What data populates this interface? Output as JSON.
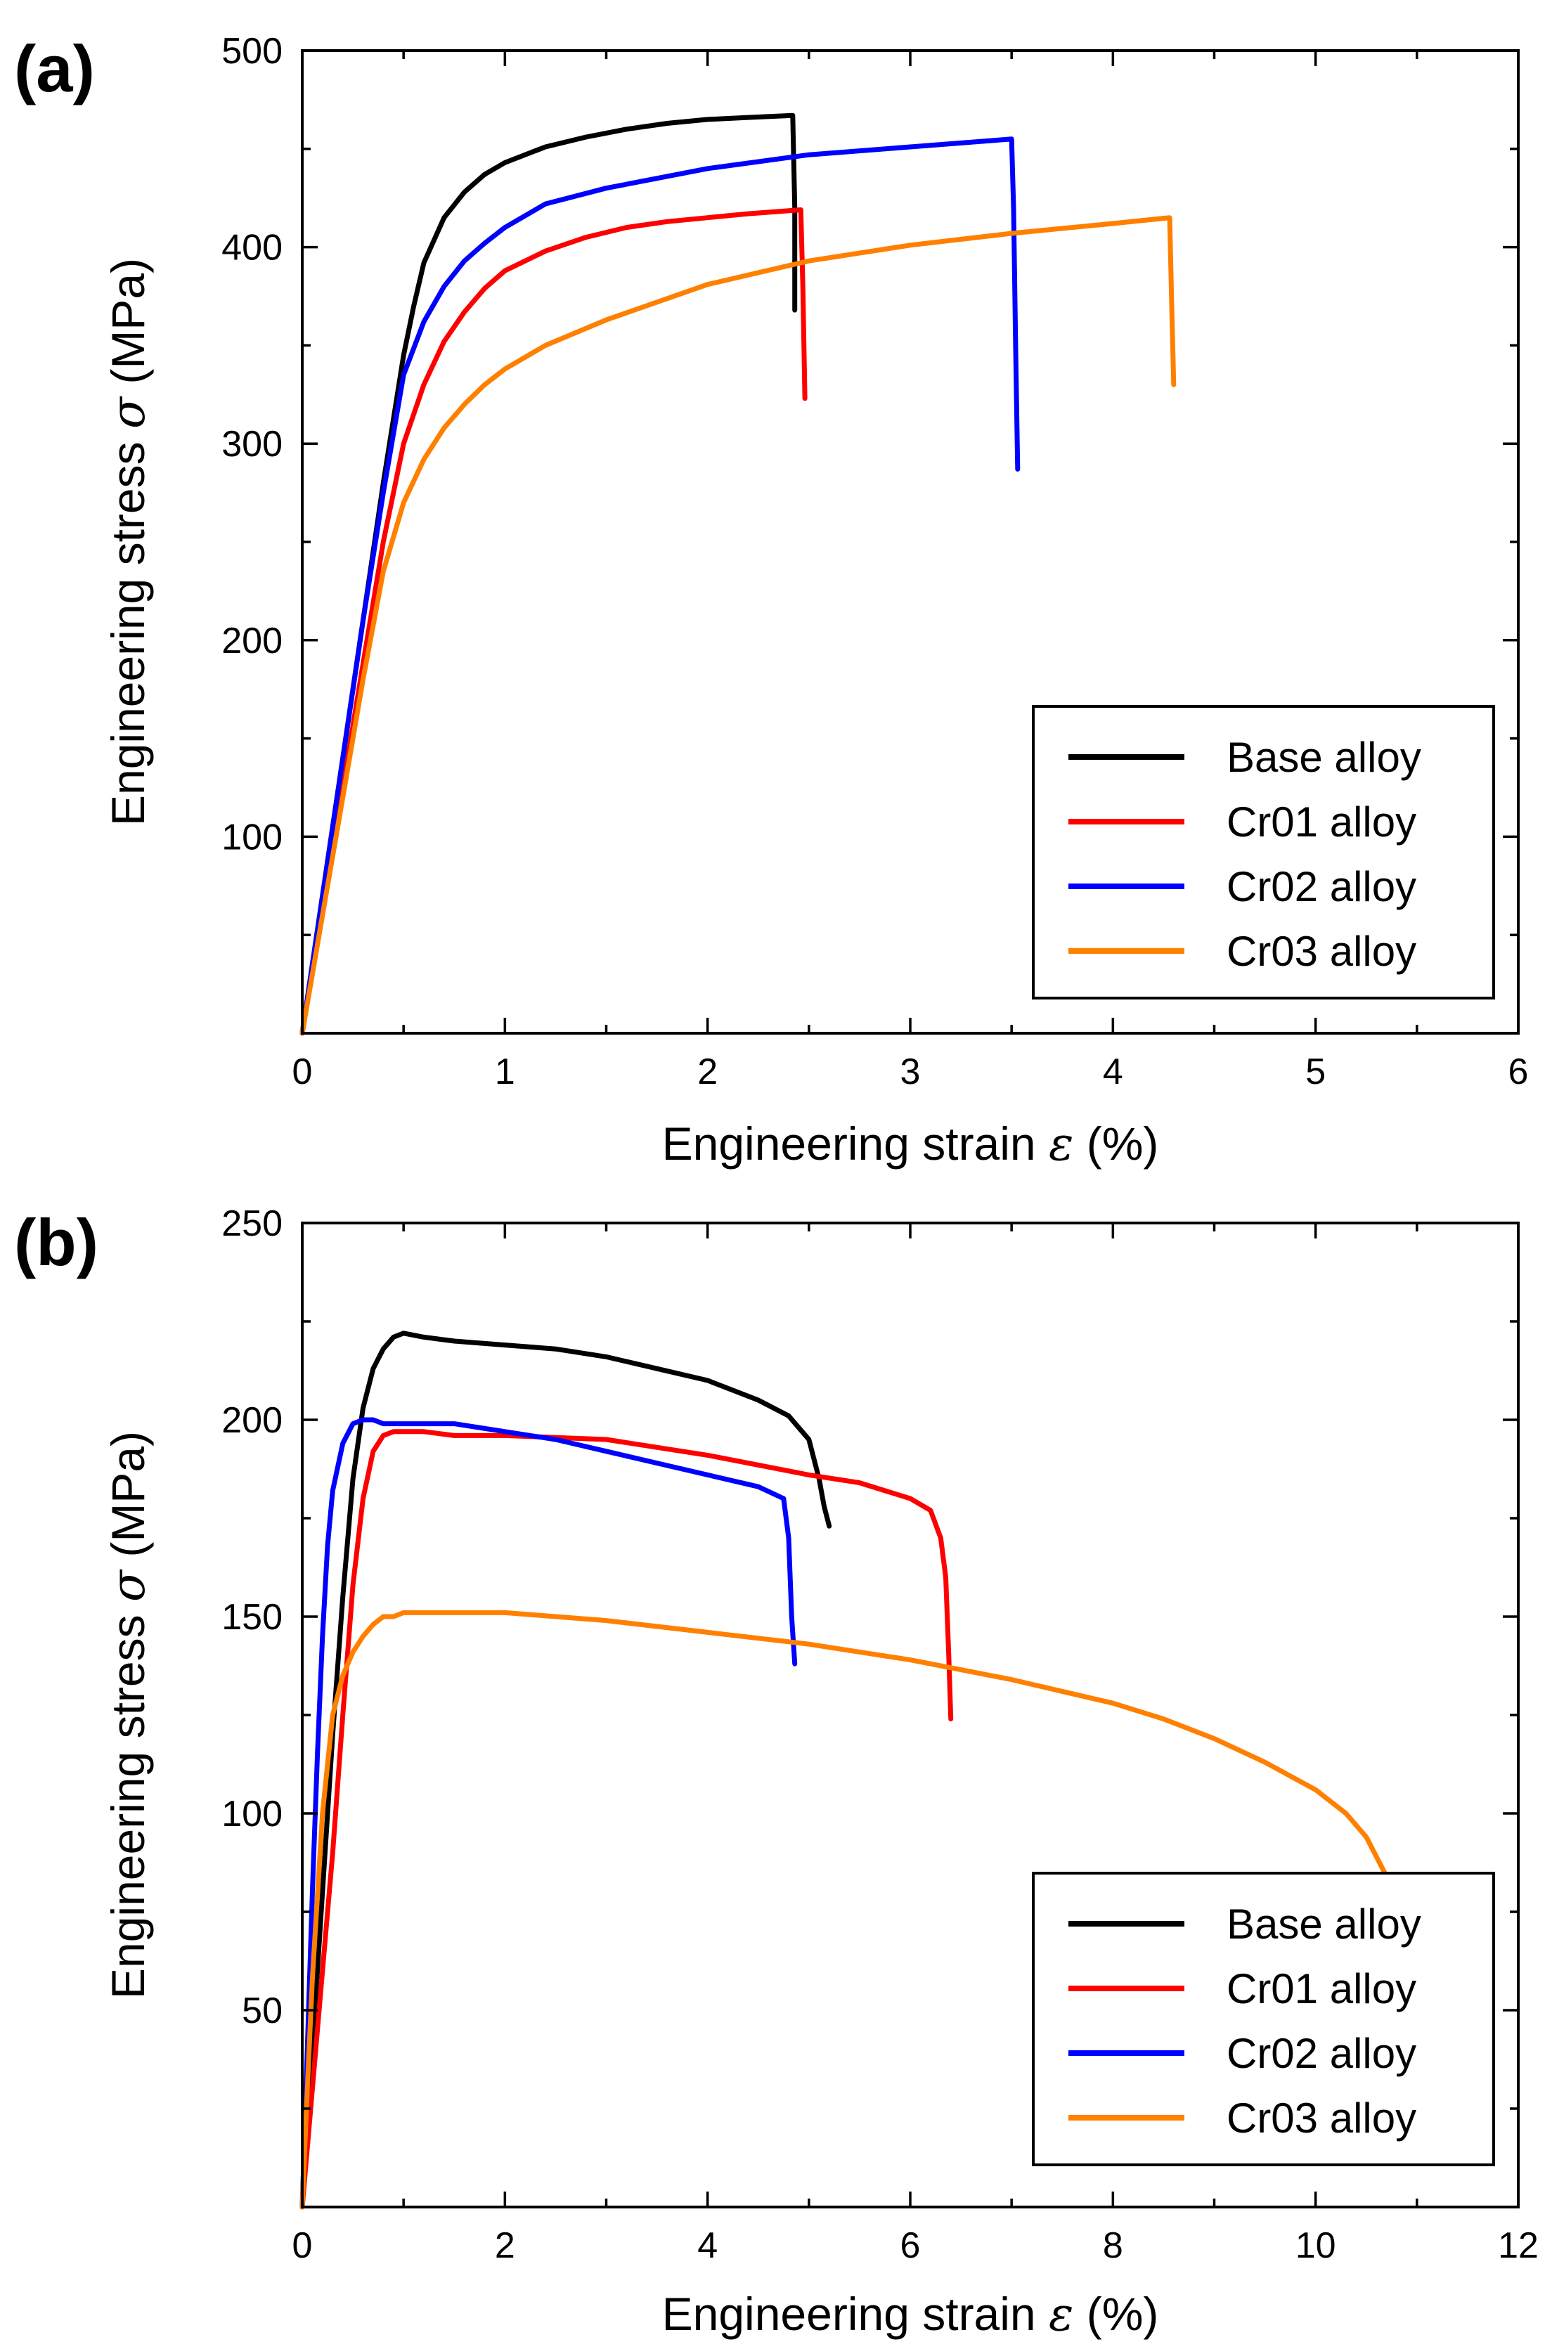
{
  "chart_data": [
    {
      "id": "a",
      "type": "line",
      "panel_label": "(a)",
      "title": "",
      "xlabel": "Engineering strain",
      "xlabel_symbol": "ε",
      "xlabel_unit": "(%)",
      "ylabel": "Engineering stress",
      "ylabel_symbol": "σ",
      "ylabel_unit": "(MPa)",
      "xlim": [
        0,
        6
      ],
      "ylim": [
        0,
        500
      ],
      "xticks": [
        0,
        1,
        2,
        3,
        4,
        5,
        6
      ],
      "yticks": [
        100,
        200,
        300,
        400,
        500
      ],
      "grid": false,
      "legend_position": "bottom-right",
      "series": [
        {
          "name": "Base alloy",
          "color": "#000000",
          "x": [
            0,
            0.1,
            0.2,
            0.3,
            0.4,
            0.5,
            0.55,
            0.6,
            0.7,
            0.8,
            0.9,
            1.0,
            1.2,
            1.4,
            1.6,
            1.8,
            2.0,
            2.2,
            2.42,
            2.43,
            2.43
          ],
          "y": [
            0,
            70,
            140,
            210,
            280,
            345,
            370,
            392,
            415,
            428,
            437,
            443,
            451,
            456,
            460,
            463,
            465,
            466,
            467,
            420,
            368
          ]
        },
        {
          "name": "Cr01 alloy",
          "color": "#ff0000",
          "x": [
            0,
            0.1,
            0.2,
            0.3,
            0.4,
            0.5,
            0.6,
            0.7,
            0.8,
            0.9,
            1.0,
            1.2,
            1.4,
            1.6,
            1.8,
            2.0,
            2.2,
            2.46,
            2.47,
            2.48
          ],
          "y": [
            0,
            62,
            125,
            188,
            250,
            300,
            330,
            352,
            367,
            379,
            388,
            398,
            405,
            410,
            413,
            415,
            417,
            419,
            380,
            323
          ]
        },
        {
          "name": "Cr02 alloy",
          "color": "#0000ff",
          "x": [
            0,
            0.1,
            0.2,
            0.3,
            0.4,
            0.5,
            0.6,
            0.7,
            0.8,
            0.9,
            1.0,
            1.2,
            1.5,
            2.0,
            2.5,
            3.0,
            3.5,
            3.51,
            3.52,
            3.53
          ],
          "y": [
            0,
            70,
            140,
            210,
            275,
            335,
            362,
            380,
            393,
            402,
            410,
            422,
            430,
            440,
            447,
            451,
            455,
            420,
            350,
            287
          ]
        },
        {
          "name": "Cr03 alloy",
          "color": "#ff8000",
          "x": [
            0,
            0.1,
            0.2,
            0.3,
            0.4,
            0.5,
            0.6,
            0.7,
            0.8,
            0.9,
            1.0,
            1.2,
            1.5,
            2.0,
            2.5,
            3.0,
            3.5,
            4.0,
            4.28,
            4.29,
            4.3
          ],
          "y": [
            0,
            60,
            120,
            180,
            235,
            270,
            292,
            308,
            320,
            330,
            338,
            350,
            363,
            381,
            393,
            401,
            407,
            412,
            415,
            370,
            330
          ]
        }
      ]
    },
    {
      "id": "b",
      "type": "line",
      "panel_label": "(b)",
      "title": "",
      "xlabel": "Engineering strain",
      "xlabel_symbol": "ε",
      "xlabel_unit": "(%)",
      "ylabel": "Engineering stress",
      "ylabel_symbol": "σ",
      "ylabel_unit": "(MPa)",
      "xlim": [
        0,
        12
      ],
      "ylim": [
        0,
        250
      ],
      "xticks": [
        0,
        2,
        4,
        6,
        8,
        10,
        12
      ],
      "yticks": [
        50,
        100,
        150,
        200,
        250
      ],
      "grid": false,
      "legend_position": "bottom-right",
      "series": [
        {
          "name": "Base alloy",
          "color": "#000000",
          "x": [
            0,
            0.1,
            0.2,
            0.3,
            0.4,
            0.5,
            0.6,
            0.7,
            0.8,
            0.9,
            1.0,
            1.2,
            1.5,
            2.0,
            2.5,
            3.0,
            3.5,
            4.0,
            4.5,
            4.8,
            5.0,
            5.1,
            5.15,
            5.2
          ],
          "y": [
            0,
            40,
            80,
            120,
            155,
            185,
            203,
            213,
            218,
            221,
            222,
            221,
            220,
            219,
            218,
            216,
            213,
            210,
            205,
            201,
            195,
            185,
            178,
            173
          ]
        },
        {
          "name": "Cr01 alloy",
          "color": "#ff0000",
          "x": [
            0,
            0.1,
            0.2,
            0.3,
            0.4,
            0.5,
            0.6,
            0.7,
            0.8,
            0.9,
            1.0,
            1.2,
            1.5,
            2.0,
            3.0,
            4.0,
            5.0,
            5.5,
            6.0,
            6.2,
            6.3,
            6.35,
            6.38,
            6.4
          ],
          "y": [
            0,
            30,
            60,
            90,
            125,
            158,
            180,
            192,
            196,
            197,
            197,
            197,
            196,
            196,
            195,
            191,
            186,
            184,
            180,
            177,
            170,
            160,
            140,
            124
          ]
        },
        {
          "name": "Cr02 alloy",
          "color": "#0000ff",
          "x": [
            0,
            0.05,
            0.1,
            0.15,
            0.2,
            0.25,
            0.3,
            0.4,
            0.5,
            0.6,
            0.7,
            0.8,
            1.0,
            1.5,
            2.0,
            2.5,
            3.0,
            3.5,
            4.0,
            4.5,
            4.75,
            4.8,
            4.83,
            4.86
          ],
          "y": [
            0,
            40,
            80,
            115,
            145,
            168,
            182,
            194,
            199,
            200,
            200,
            199,
            199,
            199,
            197,
            195,
            192,
            189,
            186,
            183,
            180,
            170,
            150,
            138
          ]
        },
        {
          "name": "Cr03 alloy",
          "color": "#ff8000",
          "x": [
            0,
            0.05,
            0.1,
            0.2,
            0.3,
            0.4,
            0.5,
            0.6,
            0.7,
            0.8,
            0.9,
            1.0,
            1.5,
            2.0,
            3.0,
            4.0,
            5.0,
            6.0,
            7.0,
            8.0,
            8.5,
            9.0,
            9.5,
            10.0,
            10.3,
            10.5,
            10.6,
            10.7
          ],
          "y": [
            0,
            30,
            58,
            100,
            125,
            135,
            141,
            145,
            148,
            150,
            150,
            151,
            151,
            151,
            149,
            146,
            143,
            139,
            134,
            128,
            124,
            119,
            113,
            106,
            100,
            94,
            89,
            84
          ]
        }
      ]
    }
  ]
}
